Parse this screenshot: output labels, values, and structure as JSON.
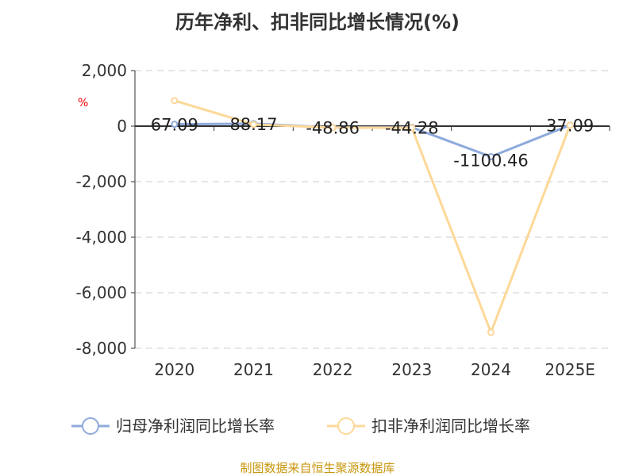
{
  "chart_data": {
    "type": "line",
    "title": "历年净利、扣非同比增长情况(%)",
    "ylabel": "%",
    "categories": [
      "2020",
      "2021",
      "2022",
      "2023",
      "2024",
      "2025E"
    ],
    "ylim": [
      -8000,
      2000
    ],
    "yticks": [
      2000,
      0,
      -2000,
      -4000,
      -6000,
      -8000
    ],
    "ytick_labels": [
      "2,000",
      "0",
      "-2,000",
      "-4,000",
      "-6,000",
      "-8,000"
    ],
    "grid": true,
    "legend": "bottom",
    "series": [
      {
        "name": "归母净利润同比增长率",
        "color": "#8eaadc",
        "values": [
          67.09,
          88.17,
          -48.86,
          -44.28,
          -1100.46,
          37.09
        ],
        "labels": [
          "67.09",
          "88.17",
          "-48.86",
          "-44.28",
          "-1100.46",
          "37.09"
        ]
      },
      {
        "name": "扣非净利润同比增长率",
        "color": "#fdd898",
        "values": [
          920,
          60,
          -55,
          -60,
          -7430,
          30
        ]
      }
    ]
  },
  "source": "制图数据来自恒生聚源数据库"
}
